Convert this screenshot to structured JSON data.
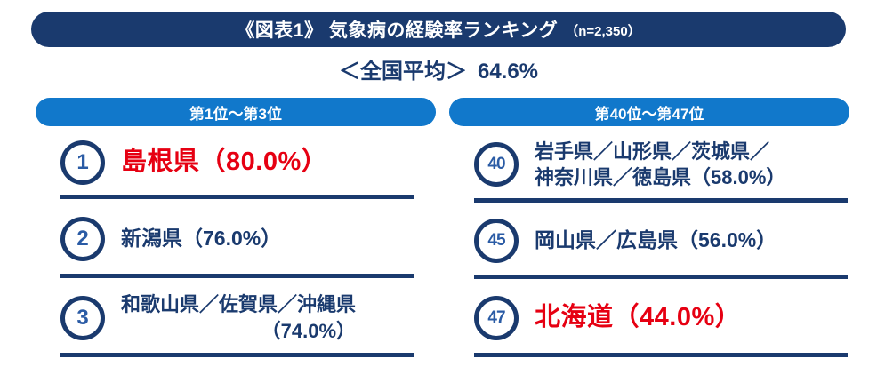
{
  "title": {
    "main": "《図表1》 気象病の経験率ランキング",
    "sample": "（n=2,350）"
  },
  "average": {
    "label": "＜全国平均＞",
    "value": "64.6%"
  },
  "columns": [
    {
      "header": "第1位～第3位",
      "rows": [
        {
          "rank": "1",
          "lines": [
            "島根県（80.0%）"
          ]
        },
        {
          "rank": "2",
          "lines": [
            "新潟県（76.0%）"
          ]
        },
        {
          "rank": "3",
          "lines": [
            "和歌山県／佐賀県／沖縄県",
            "（74.0%）"
          ]
        }
      ]
    },
    {
      "header": "第40位～第47位",
      "rows": [
        {
          "rank": "40",
          "lines": [
            "岩手県／山形県／茨城県／",
            "神奈川県／徳島県（58.0%）"
          ]
        },
        {
          "rank": "45",
          "lines": [
            "岡山県／広島県（56.0%）"
          ]
        },
        {
          "rank": "47",
          "lines": [
            "北海道（44.0%）"
          ]
        }
      ]
    }
  ],
  "colors": {
    "navy": "#1a3a6e",
    "header_blue": "#1178cb",
    "highlight_red": "#e60012",
    "rank_number_blue": "#2a5ba5"
  },
  "chart_data": {
    "type": "table",
    "title": "《図表1》気象病の経験率ランキング",
    "sample_size": 2350,
    "national_average_pct": 64.6,
    "columns_shown": [
      "第1位～第3位",
      "第40位～第47位"
    ],
    "rankings": [
      {
        "rank": 1,
        "prefectures": [
          "島根県"
        ],
        "value_pct": 80.0,
        "highlighted": true
      },
      {
        "rank": 2,
        "prefectures": [
          "新潟県"
        ],
        "value_pct": 76.0,
        "highlighted": false
      },
      {
        "rank": 3,
        "prefectures": [
          "和歌山県",
          "佐賀県",
          "沖縄県"
        ],
        "value_pct": 74.0,
        "highlighted": false
      },
      {
        "rank": 40,
        "prefectures": [
          "岩手県",
          "山形県",
          "茨城県",
          "神奈川県",
          "徳島県"
        ],
        "value_pct": 58.0,
        "highlighted": false
      },
      {
        "rank": 45,
        "prefectures": [
          "岡山県",
          "広島県"
        ],
        "value_pct": 56.0,
        "highlighted": false
      },
      {
        "rank": 47,
        "prefectures": [
          "北海道"
        ],
        "value_pct": 44.0,
        "highlighted": true
      }
    ]
  }
}
